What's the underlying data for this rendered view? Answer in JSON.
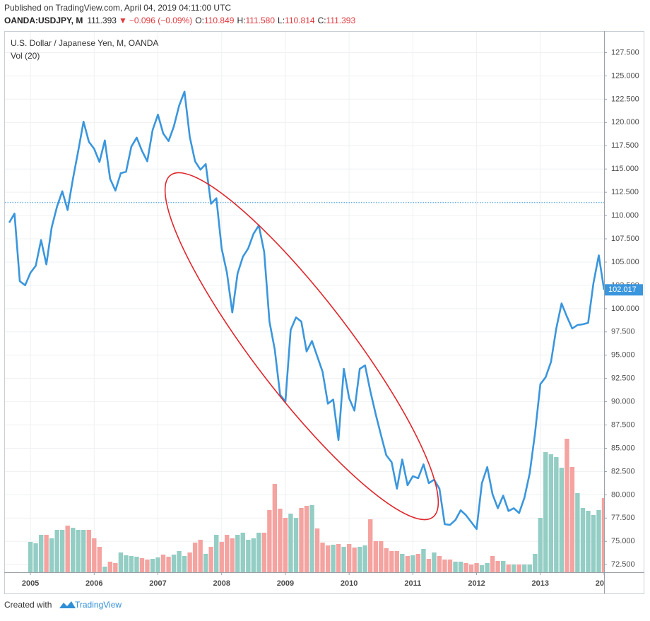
{
  "header": {
    "published": "Published on TradingView.com, April 04, 2019 04:11:00 UTC",
    "symbol": "OANDA:USDJPY, M",
    "close": 111.393,
    "change_arrow": "▼",
    "change": "−0.096 (−0.09%)",
    "open_label": "O:",
    "open": 110.849,
    "high_label": "H:",
    "high": {
      "value": 111.58,
      "label": "111.580"
    },
    "low_label": "L:",
    "low": 110.814,
    "close_label": "C:"
  },
  "footer": {
    "created": "Created with",
    "brand": "TradingView"
  },
  "chart_data": {
    "type": "line",
    "x": [
      2004.667,
      2004.75,
      2004.833,
      2004.917,
      2005,
      2005.083,
      2005.167,
      2005.25,
      2005.333,
      2005.417,
      2005.5,
      2005.583,
      2005.667,
      2005.75,
      2005.833,
      2005.917,
      2006,
      2006.083,
      2006.167,
      2006.25,
      2006.333,
      2006.417,
      2006.5,
      2006.583,
      2006.667,
      2006.75,
      2006.833,
      2006.917,
      2007,
      2007.083,
      2007.167,
      2007.25,
      2007.333,
      2007.417,
      2007.5,
      2007.583,
      2007.667,
      2007.75,
      2007.833,
      2007.917,
      2008,
      2008.083,
      2008.167,
      2008.25,
      2008.333,
      2008.417,
      2008.5,
      2008.583,
      2008.667,
      2008.75,
      2008.833,
      2008.917,
      2009,
      2009.083,
      2009.167,
      2009.25,
      2009.333,
      2009.417,
      2009.5,
      2009.583,
      2009.667,
      2009.75,
      2009.833,
      2009.917,
      2010,
      2010.083,
      2010.167,
      2010.25,
      2010.333,
      2010.417,
      2010.5,
      2010.583,
      2010.667,
      2010.75,
      2010.833,
      2010.917,
      2011,
      2011.083,
      2011.167,
      2011.25,
      2011.333,
      2011.417,
      2011.5,
      2011.583,
      2011.667,
      2011.75,
      2011.833,
      2011.917,
      2012,
      2012.083,
      2012.167,
      2012.25,
      2012.333,
      2012.417,
      2012.5,
      2012.583,
      2012.667,
      2012.75,
      2012.833,
      2012.917,
      2013,
      2013.083,
      2013.167,
      2013.25,
      2013.333,
      2013.417,
      2013.5,
      2013.583,
      2013.667,
      2013.75,
      2013.833,
      2013.917,
      2014
    ],
    "series": [
      {
        "name": "U.S. Dollar / Japanese Yen, M, OANDA",
        "color": "#3a96dd",
        "values": [
          109.24,
          110.21,
          102.95,
          102.51,
          103.85,
          104.6,
          107.37,
          104.75,
          108.72,
          110.96,
          112.61,
          110.59,
          113.95,
          116.95,
          120.09,
          117.92,
          117.17,
          115.75,
          118.07,
          113.95,
          112.68,
          114.55,
          114.7,
          117.4,
          118.37,
          116.95,
          115.83,
          119.19,
          120.84,
          118.82,
          118.0,
          119.57,
          121.81,
          123.31,
          118.44,
          115.83,
          114.93,
          115.53,
          111.26,
          111.86,
          106.47,
          103.85,
          99.59,
          103.78,
          105.57,
          106.47,
          108.04,
          108.94,
          106.1,
          98.61,
          95.62,
          90.76,
          90.01,
          97.72,
          99.06,
          98.61,
          95.4,
          96.52,
          94.87,
          93.23,
          89.79,
          90.23,
          85.89,
          93.53,
          90.38,
          89.04,
          93.53,
          93.9,
          91.13,
          88.66,
          86.42,
          84.25,
          83.5,
          80.66,
          83.8,
          81.03,
          82.0,
          81.78,
          83.28,
          81.25,
          81.63,
          80.66,
          76.84,
          76.77,
          77.29,
          78.34,
          77.81,
          77.06,
          76.32,
          81.25,
          82.98,
          80.06,
          78.56,
          79.91,
          78.26,
          78.56,
          78.04,
          79.68,
          82.3,
          86.64,
          91.88,
          92.63,
          94.27,
          97.87,
          100.56,
          99.14,
          97.87,
          98.24,
          98.32,
          98.47,
          102.73,
          105.72,
          102.017
        ]
      },
      {
        "name": "Vol (20)",
        "type": "bar",
        "axis": "y2",
        "up_color": "#93cdc4",
        "down_color": "#f4a3a0",
        "values": [
          null,
          null,
          null,
          null,
          43,
          41,
          53,
          53,
          48,
          60,
          60,
          66,
          63,
          60,
          60,
          60,
          48,
          36,
          8,
          15,
          13,
          28,
          24,
          23,
          22,
          20,
          18,
          19,
          21,
          25,
          22,
          25,
          30,
          23,
          28,
          42,
          46,
          26,
          36,
          53,
          43,
          53,
          48,
          53,
          56,
          46,
          48,
          56,
          56,
          88,
          125,
          90,
          77,
          83,
          77,
          91,
          94,
          95,
          62,
          42,
          38,
          39,
          40,
          36,
          40,
          35,
          36,
          38,
          75,
          44,
          44,
          34,
          30,
          30,
          26,
          23,
          24,
          26,
          33,
          19,
          28,
          23,
          18,
          18,
          15,
          15,
          13,
          11,
          13,
          10,
          13,
          23,
          16,
          16,
          11,
          11,
          11,
          11,
          11,
          26,
          77,
          170,
          167,
          163,
          148,
          189,
          149,
          112,
          91,
          87,
          81,
          88,
          105
        ]
      }
    ],
    "xlim": [
      2004.6,
      2014
    ],
    "xticks": [
      2005,
      2006,
      2007,
      2008,
      2009,
      2010,
      2011,
      2012,
      2013,
      {
        "value": 2014,
        "label": "20"
      }
    ],
    "ylim": [
      71.68,
      129.74
    ],
    "yticks": [
      {
        "value": 72.5,
        "label": "72.500"
      },
      {
        "value": 75,
        "label": "75.000"
      },
      {
        "value": 77.5,
        "label": "77.500"
      },
      {
        "value": 80,
        "label": "80.000"
      },
      {
        "value": 82.5,
        "label": "82.500"
      },
      {
        "value": 85,
        "label": "85.000"
      },
      {
        "value": 87.5,
        "label": "87.500"
      },
      {
        "value": 90,
        "label": "90.000"
      },
      {
        "value": 92.5,
        "label": "92.500"
      },
      {
        "value": 95,
        "label": "95.000"
      },
      {
        "value": 97.5,
        "label": "97.500"
      },
      {
        "value": 100,
        "label": "100.000"
      },
      {
        "value": 102.5,
        "label": "102.500"
      },
      {
        "value": 105,
        "label": "105.000"
      },
      {
        "value": 107.5,
        "label": "107.500"
      },
      {
        "value": 110,
        "label": "110.000"
      },
      {
        "value": 112.5,
        "label": "112.500"
      },
      {
        "value": 115,
        "label": "115.000"
      },
      {
        "value": 117.5,
        "label": "117.500"
      },
      {
        "value": 120,
        "label": "120.000"
      },
      {
        "value": 122.5,
        "label": "122.500"
      },
      {
        "value": 125,
        "label": "125.000"
      },
      {
        "value": 127.5,
        "label": "127.500"
      }
    ],
    "y2lim": [
      0,
      765
    ],
    "grid": true
  }
}
